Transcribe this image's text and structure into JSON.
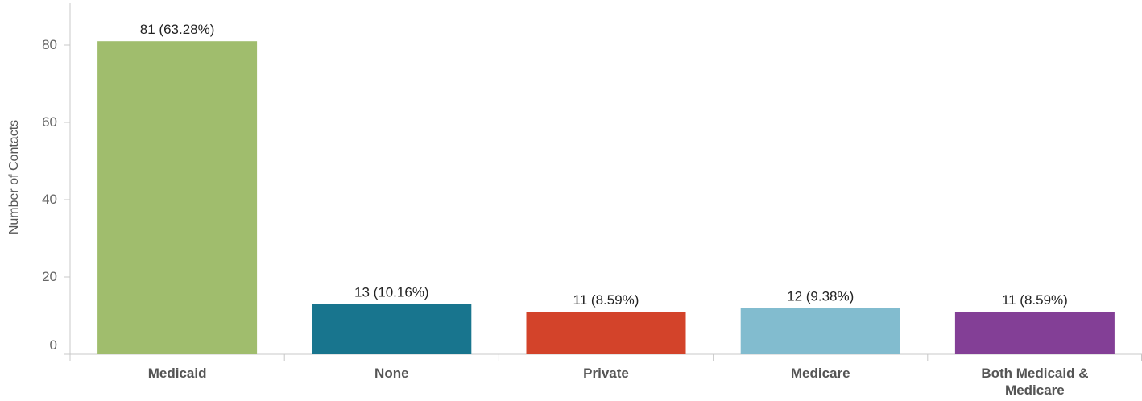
{
  "chart_data": {
    "type": "bar",
    "categories": [
      "Medicaid",
      "None",
      "Private",
      "Medicare",
      "Both Medicaid & Medicare"
    ],
    "category_lines": [
      [
        "Medicaid"
      ],
      [
        "None"
      ],
      [
        "Private"
      ],
      [
        "Medicare"
      ],
      [
        "Both Medicaid &",
        "Medicare"
      ]
    ],
    "values": [
      81,
      13,
      11,
      12,
      11
    ],
    "data_labels": [
      "81 (63.28%)",
      "13 (10.16%)",
      "11 (8.59%)",
      "12 (9.38%)",
      "11 (8.59%)"
    ],
    "colors": [
      "#a0bd6d",
      "#18758e",
      "#d3432a",
      "#82bccf",
      "#833f96"
    ],
    "title": "",
    "xlabel": "",
    "ylabel": "Number of Contacts",
    "ylim": [
      0,
      90
    ],
    "yticks": [
      0,
      20,
      40,
      60,
      80
    ],
    "grid": false,
    "legend": "none"
  }
}
